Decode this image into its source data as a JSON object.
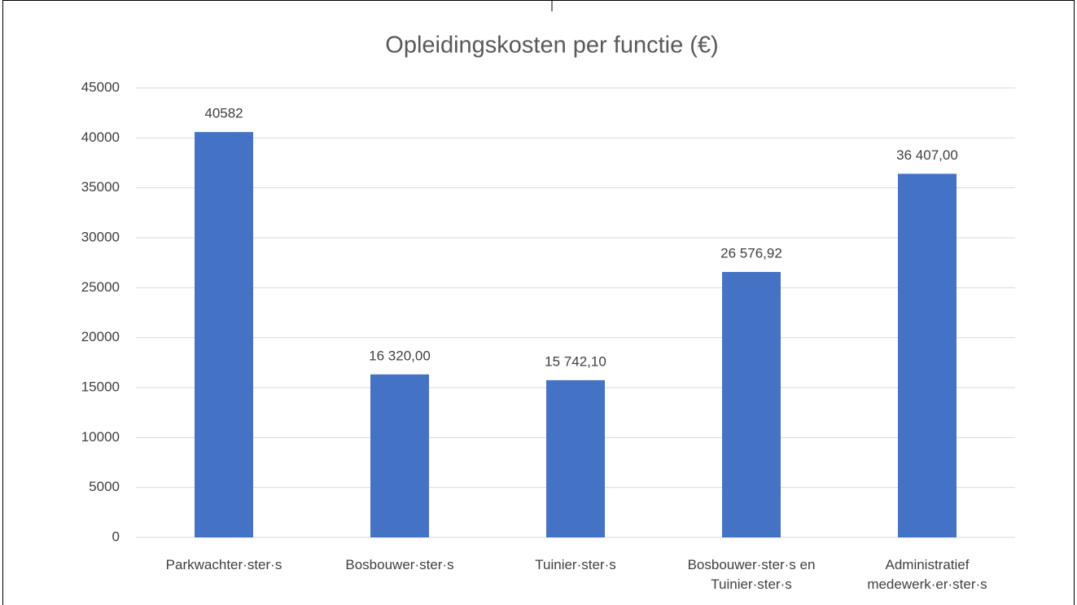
{
  "chart_data": {
    "type": "bar",
    "title": "Opleidingskosten per functie (€)",
    "categories": [
      "Parkwachter·ster·s",
      "Bosbouwer·ster·s",
      "Tuinier·ster·s",
      "Bosbouwer·ster·s en Tuinier·ster·s",
      "Administratief medewerk·er·ster·s"
    ],
    "values": [
      40582,
      16320,
      15742.1,
      26576.92,
      36407
    ],
    "value_labels": [
      "40582",
      "16 320,00",
      "15 742,10",
      "26 576,92",
      "36 407,00"
    ],
    "color": "#4472c4",
    "ylim": [
      0,
      45000
    ],
    "yticks": [
      0,
      5000,
      10000,
      15000,
      20000,
      25000,
      30000,
      35000,
      40000,
      45000
    ],
    "grid": true
  }
}
